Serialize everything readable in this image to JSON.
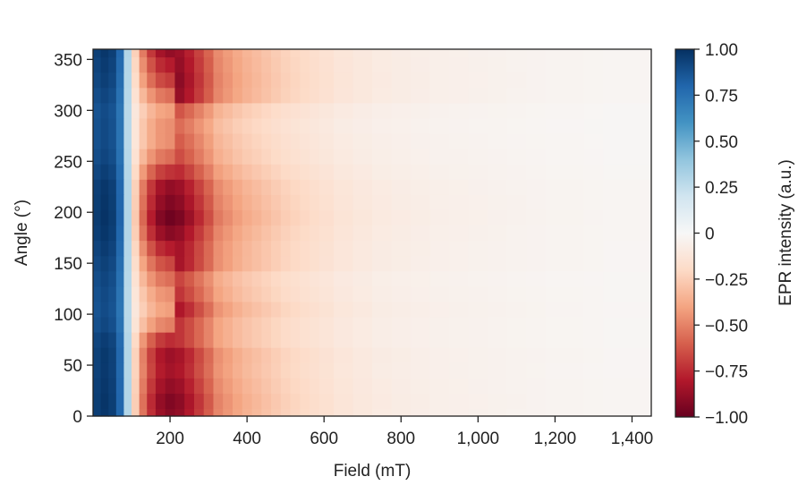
{
  "chart_data": {
    "type": "heatmap",
    "title": "",
    "xlabel": "Field (mT)",
    "ylabel": "Angle (°)",
    "xlim": [
      0,
      1450
    ],
    "ylim": [
      0,
      360
    ],
    "x_ticks": [
      {
        "value": 200,
        "label": "200"
      },
      {
        "value": 400,
        "label": "400"
      },
      {
        "value": 600,
        "label": "600"
      },
      {
        "value": 800,
        "label": "800"
      },
      {
        "value": 1000,
        "label": "1,000"
      },
      {
        "value": 1200,
        "label": "1,200"
      },
      {
        "value": 1400,
        "label": "1,400"
      }
    ],
    "y_ticks": [
      {
        "value": 0,
        "label": "0"
      },
      {
        "value": 50,
        "label": "50"
      },
      {
        "value": 100,
        "label": "100"
      },
      {
        "value": 150,
        "label": "150"
      },
      {
        "value": 200,
        "label": "200"
      },
      {
        "value": 250,
        "label": "250"
      },
      {
        "value": 300,
        "label": "300"
      },
      {
        "value": 350,
        "label": "350"
      }
    ],
    "x_centers": [
      10,
      30,
      50,
      70,
      90,
      110,
      130,
      150,
      175,
      200,
      225,
      250,
      275,
      300,
      325,
      350,
      375,
      400,
      425,
      450,
      475,
      500,
      525,
      550,
      575,
      600,
      650,
      700,
      750,
      800,
      850,
      900,
      950,
      1000,
      1050,
      1100,
      1150,
      1200,
      1250,
      1300,
      1350,
      1400,
      1440
    ],
    "y_centers": [
      0,
      15,
      30,
      45,
      60,
      75,
      90,
      105,
      120,
      135,
      150,
      165,
      180,
      195,
      210,
      225,
      240,
      255,
      270,
      285,
      300,
      315,
      330,
      345,
      360
    ],
    "x_profile": [
      0.95,
      0.98,
      0.95,
      0.8,
      0.3,
      -0.25,
      -0.55,
      -0.75,
      -0.88,
      -0.93,
      -0.9,
      -0.82,
      -0.72,
      -0.62,
      -0.5,
      -0.45,
      -0.4,
      -0.36,
      -0.33,
      -0.3,
      -0.27,
      -0.24,
      -0.22,
      -0.2,
      -0.18,
      -0.16,
      -0.13,
      -0.11,
      -0.09,
      -0.08,
      -0.07,
      -0.06,
      -0.055,
      -0.05,
      -0.045,
      -0.04,
      -0.035,
      -0.03,
      -0.03,
      -0.025,
      -0.02,
      -0.02,
      -0.02
    ],
    "angle_strength": [
      0.98,
      1.0,
      0.95,
      0.9,
      0.92,
      0.8,
      0.55,
      0.45,
      0.5,
      0.6,
      0.72,
      0.85,
      0.98,
      1.05,
      1.0,
      0.95,
      0.78,
      0.6,
      0.5,
      0.5,
      0.45,
      0.6,
      0.75,
      0.85,
      0.95
    ],
    "angle_bands": [
      0.0,
      0.0,
      0.0,
      0.0,
      0.0,
      0.0,
      0.1,
      0.18,
      0.12,
      0.06,
      0.08,
      0.03,
      0.0,
      0.0,
      0.0,
      0.0,
      0.02,
      0.05,
      0.07,
      0.05,
      0.1,
      0.15,
      0.1,
      0.05,
      0.0
    ],
    "colorbar": {
      "label": "EPR intensity (a.u.)",
      "range": [
        -1.0,
        1.0
      ],
      "ticks": [
        {
          "value": 1.0,
          "label": "1.00"
        },
        {
          "value": 0.75,
          "label": "0.75"
        },
        {
          "value": 0.5,
          "label": "0.50"
        },
        {
          "value": 0.25,
          "label": "0.25"
        },
        {
          "value": 0.0,
          "label": "0"
        },
        {
          "value": -0.25,
          "label": "−0.25"
        },
        {
          "value": -0.5,
          "label": "−0.50"
        },
        {
          "value": -0.75,
          "label": "−0.75"
        },
        {
          "value": -1.0,
          "label": "−1.00"
        }
      ],
      "colormap": [
        "#67001f",
        "#b2182b",
        "#d6604d",
        "#f4a582",
        "#fddbc7",
        "#f7f7f7",
        "#d1e5f0",
        "#92c5de",
        "#4393c3",
        "#2166ac",
        "#053061"
      ]
    }
  }
}
